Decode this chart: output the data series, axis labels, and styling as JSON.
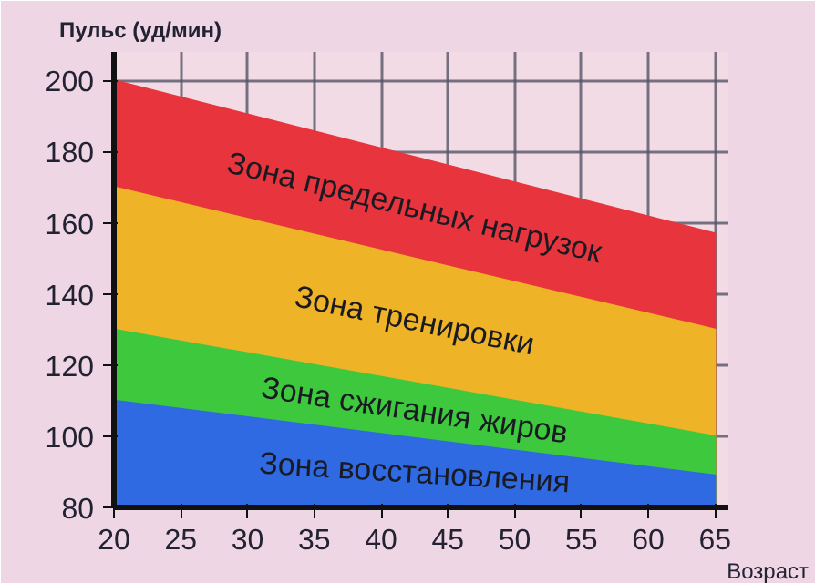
{
  "chart_data": {
    "type": "area",
    "ylabel": "Пульс (уд/мин)",
    "xlabel": "Возраст",
    "xlim": [
      20,
      66
    ],
    "ylim": [
      80,
      208
    ],
    "xticks": [
      20,
      25,
      30,
      35,
      40,
      45,
      50,
      55,
      60,
      65
    ],
    "yticks": [
      80,
      100,
      120,
      140,
      160,
      180,
      200
    ],
    "grid": true,
    "x": [
      20,
      65
    ],
    "series": [
      {
        "name": "Зона предельных нагрузок",
        "color": "#e8343c",
        "values": [
          200,
          157
        ]
      },
      {
        "name": "Зона тренировки",
        "color": "#eeb326",
        "values": [
          170,
          130
        ]
      },
      {
        "name": "Зона сжигания жиров",
        "color": "#3ec83e",
        "values": [
          130,
          100
        ]
      },
      {
        "name": "Зона восстановления",
        "color": "#2f6ae2",
        "values": [
          110,
          89
        ]
      }
    ]
  }
}
